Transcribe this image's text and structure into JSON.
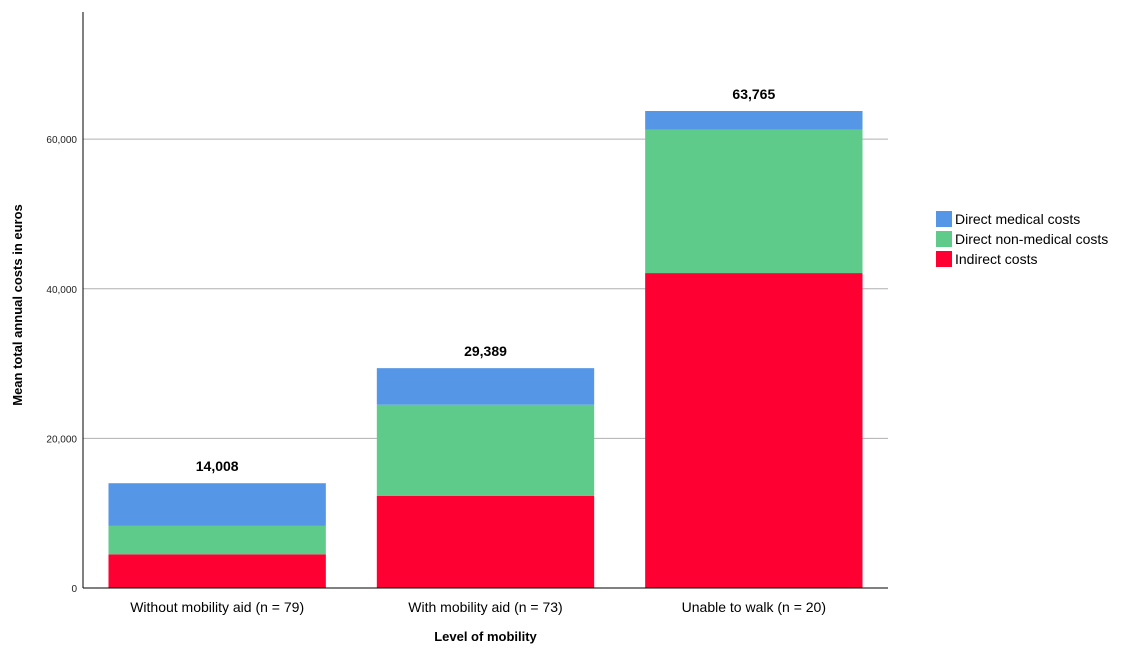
{
  "chart_data": {
    "type": "bar",
    "stacked": true,
    "categories": [
      "Without mobility aid (n = 79)",
      "With mobility aid (n = 73)",
      "Unable to walk (n = 20)"
    ],
    "series": [
      {
        "name": "Indirect costs",
        "values": [
          4500,
          12300,
          42100
        ],
        "color": "#ff0033"
      },
      {
        "name": "Direct non-medical costs",
        "values": [
          3800,
          12200,
          19150
        ],
        "color": "#5fcb8a"
      },
      {
        "name": "Direct medical costs",
        "values": [
          5708,
          4889,
          2515
        ],
        "color": "#5597e6"
      }
    ],
    "totals": [
      "14,008",
      "29,389",
      "63,765"
    ],
    "xlabel": "Level of mobility",
    "ylabel": "Mean total annual costs in euros",
    "ylim": [
      0,
      77000
    ],
    "yticks": [
      0,
      20000,
      40000,
      60000
    ],
    "ytick_labels": [
      "0",
      "20,000",
      "40,000",
      "60,000"
    ],
    "grid": true,
    "legend": {
      "position": "right",
      "order": [
        "Direct medical costs",
        "Direct non-medical costs",
        "Indirect costs"
      ]
    }
  }
}
